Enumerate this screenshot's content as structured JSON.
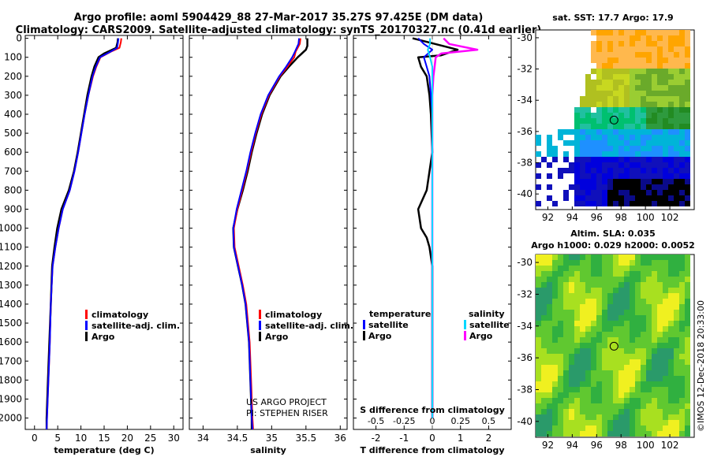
{
  "header": {
    "title_line1": "Argo profile: aoml 5904429_88 27-Mar-2017 35.27S 97.425E (DM data)",
    "title_line2": "Climatology: CARS2009. Satellite-adjusted climatology: synTS_20170327.nc (0.41d earlier)"
  },
  "colors": {
    "climatology": "#ff0000",
    "satellite": "#0000ff",
    "argo": "#000000",
    "sat_diff": "#00d8ff",
    "sal_clim_diff": "#ff00ff"
  },
  "depth_axis": {
    "ticks": [
      "0",
      "100",
      "200",
      "300",
      "400",
      "500",
      "600",
      "700",
      "800",
      "900",
      "1000",
      "1100",
      "1200",
      "1300",
      "1400",
      "1500",
      "1600",
      "1700",
      "1800",
      "1900",
      "2000"
    ]
  },
  "legend": {
    "climatology": "climatology",
    "satellite": "satellite-adj. clim.",
    "argo": "Argo",
    "diff_temperature": "temperature",
    "diff_salinity": "salinity",
    "diff_satellite": "satellite",
    "diff_argo": "Argo"
  },
  "credit": {
    "line1": "US ARGO PROJECT",
    "line2": "PI: STEPHEN RISER"
  },
  "footer_stamp": "©IMOS 12-Dec-2018 20:33:00",
  "chart_data": [
    {
      "type": "line",
      "title": "",
      "xlabel": "temperature (deg C)",
      "ylabel": "",
      "xlim": [
        -2,
        32
      ],
      "ylim": [
        2060,
        -15
      ],
      "x_ticks": [
        "0",
        "5",
        "10",
        "15",
        "20",
        "25",
        "30"
      ],
      "series": [
        {
          "name": "climatology",
          "depth": [
            0,
            20,
            50,
            70,
            100,
            150,
            200,
            300,
            400,
            500,
            600,
            700,
            800,
            900,
            1000,
            1100,
            1200,
            1400,
            1600,
            1800,
            2000,
            2060
          ],
          "values": [
            18.7,
            18.6,
            18.3,
            16.5,
            14.2,
            13.3,
            12.6,
            11.6,
            10.8,
            10.1,
            9.4,
            8.6,
            7.6,
            6.1,
            5.2,
            4.5,
            3.9,
            3.5,
            3.3,
            3.0,
            2.7,
            2.6
          ]
        },
        {
          "name": "satellite-adj. clim.",
          "depth": [
            0,
            20,
            50,
            70,
            100,
            150,
            200,
            300,
            400,
            500,
            600,
            700,
            800,
            900,
            1000,
            1100,
            1200,
            1400,
            1600,
            1800,
            2000,
            2060
          ],
          "values": [
            18.1,
            18.0,
            17.8,
            16.4,
            14.1,
            13.2,
            12.5,
            11.6,
            10.8,
            10.1,
            9.4,
            8.6,
            7.6,
            6.1,
            5.2,
            4.5,
            3.9,
            3.5,
            3.3,
            3.0,
            2.7,
            2.6
          ]
        },
        {
          "name": "Argo",
          "depth": [
            0,
            20,
            50,
            80,
            100,
            150,
            200,
            300,
            400,
            500,
            600,
            700,
            800,
            900,
            1000,
            1100,
            1200,
            1400,
            1600,
            1800,
            2000,
            2060
          ],
          "values": [
            18.0,
            17.9,
            17.6,
            15.0,
            13.8,
            12.9,
            12.3,
            11.4,
            10.7,
            10.0,
            9.3,
            8.5,
            7.4,
            5.8,
            4.9,
            4.3,
            3.8,
            3.5,
            3.2,
            2.9,
            2.6,
            2.6
          ]
        }
      ]
    },
    {
      "type": "line",
      "title": "",
      "xlabel": "salinity",
      "ylabel": "",
      "xlim": [
        33.8,
        36.1
      ],
      "ylim": [
        2060,
        -15
      ],
      "x_ticks": [
        "34",
        "34.5",
        "35",
        "35.5",
        "36"
      ],
      "series": [
        {
          "name": "climatology",
          "depth": [
            0,
            30,
            70,
            100,
            150,
            200,
            300,
            400,
            500,
            600,
            700,
            800,
            900,
            1000,
            1100,
            1200,
            1300,
            1400,
            1600,
            1800,
            2000,
            2060
          ],
          "values": [
            35.42,
            35.41,
            35.35,
            35.33,
            35.23,
            35.12,
            34.96,
            34.85,
            34.77,
            34.7,
            34.64,
            34.57,
            34.5,
            34.45,
            34.46,
            34.52,
            34.58,
            34.63,
            34.68,
            34.7,
            34.72,
            34.73
          ]
        },
        {
          "name": "satellite-adj. clim.",
          "depth": [
            0,
            30,
            70,
            100,
            150,
            200,
            300,
            400,
            500,
            600,
            700,
            800,
            900,
            1000,
            1100,
            1200,
            1300,
            1400,
            1600,
            1800,
            2000,
            2060
          ],
          "values": [
            35.4,
            35.39,
            35.34,
            35.3,
            35.21,
            35.11,
            34.95,
            34.84,
            34.76,
            34.69,
            34.63,
            34.56,
            34.49,
            34.44,
            34.45,
            34.51,
            34.57,
            34.62,
            34.67,
            34.69,
            34.71,
            34.72
          ]
        },
        {
          "name": "Argo",
          "depth": [
            0,
            40,
            60,
            100,
            150,
            200,
            300,
            400,
            500,
            600,
            700,
            800,
            900,
            1000,
            1100,
            1200,
            1300,
            1400,
            1600,
            1800,
            2000,
            2060
          ],
          "values": [
            35.52,
            35.52,
            35.5,
            35.38,
            35.25,
            35.13,
            34.97,
            34.86,
            34.78,
            34.71,
            34.65,
            34.58,
            34.5,
            34.44,
            34.45,
            34.51,
            34.57,
            34.62,
            34.67,
            34.69,
            34.71,
            34.71
          ]
        }
      ]
    },
    {
      "type": "line",
      "title": "S difference from climatology",
      "xlabel": "T difference from climatology",
      "ylabel": "",
      "xlim": [
        -2.8,
        2.8
      ],
      "ylim": [
        2060,
        -15
      ],
      "x_ticks_T": [
        "-2",
        "-1",
        "0",
        "1",
        "2"
      ],
      "x_ticks_S": [
        "-0.5",
        "-0.25",
        "0",
        "0.25",
        "0.5"
      ],
      "series": [
        {
          "name": "T satellite",
          "depth": [
            0,
            30,
            60,
            100,
            150,
            200,
            300,
            400,
            600,
            800,
            1000,
            1200,
            1500,
            2000
          ],
          "values": [
            -0.5,
            -0.3,
            0.0,
            -0.3,
            -0.2,
            -0.1,
            -0.05,
            0.0,
            0.0,
            0.0,
            0.0,
            0.0,
            0.0,
            0.0
          ]
        },
        {
          "name": "T Argo",
          "depth": [
            0,
            30,
            60,
            90,
            100,
            150,
            200,
            300,
            400,
            600,
            800,
            900,
            1000,
            1050,
            1100,
            1200,
            1400,
            1600,
            1800,
            2000
          ],
          "values": [
            -0.7,
            0.1,
            0.9,
            0.3,
            -0.5,
            -0.4,
            -0.2,
            -0.1,
            -0.05,
            0.0,
            -0.2,
            -0.5,
            -0.4,
            -0.2,
            -0.1,
            0.0,
            0.0,
            0.0,
            0.0,
            0.0
          ]
        },
        {
          "name": "S satellite",
          "depth": [
            0,
            30,
            60,
            100,
            150,
            200,
            300,
            400,
            600,
            800,
            1000,
            1500,
            2000
          ],
          "values": [
            -0.02,
            -0.02,
            -0.04,
            -0.02,
            0.0,
            0.0,
            0.0,
            0.0,
            0.0,
            0.0,
            0.0,
            0.0,
            0.0
          ]
        },
        {
          "name": "S Argo",
          "depth": [
            0,
            30,
            60,
            80,
            100,
            150,
            200,
            300,
            400,
            600,
            800,
            1000,
            1500,
            2000
          ],
          "values": [
            0.1,
            0.15,
            0.4,
            0.08,
            0.03,
            0.02,
            0.01,
            0.0,
            0.0,
            0.0,
            0.0,
            0.0,
            0.0,
            0.0
          ]
        }
      ]
    },
    {
      "type": "heatmap",
      "title": "sat. SST: 17.7 Argo: 17.9",
      "xlabel": "",
      "ylabel": "",
      "xlim": [
        91,
        104
      ],
      "ylim": [
        -41,
        -29.5
      ],
      "x_ticks": [
        "92",
        "94",
        "96",
        "98",
        "100",
        "102"
      ],
      "y_ticks": [
        "-30",
        "-32",
        "-34",
        "-36",
        "-38",
        "-40"
      ],
      "marker": {
        "lon": 97.425,
        "lat": -35.27
      }
    },
    {
      "type": "heatmap",
      "title": "Altim. SLA: 0.035",
      "subtitle": "Argo h1000: 0.029 h2000: 0.0052",
      "xlabel": "",
      "ylabel": "",
      "xlim": [
        91,
        104
      ],
      "ylim": [
        -41,
        -29.5
      ],
      "x_ticks": [
        "92",
        "94",
        "96",
        "98",
        "100",
        "102"
      ],
      "y_ticks": [
        "-30",
        "-32",
        "-34",
        "-36",
        "-38",
        "-40"
      ],
      "marker": {
        "lon": 97.425,
        "lat": -35.27
      }
    }
  ]
}
